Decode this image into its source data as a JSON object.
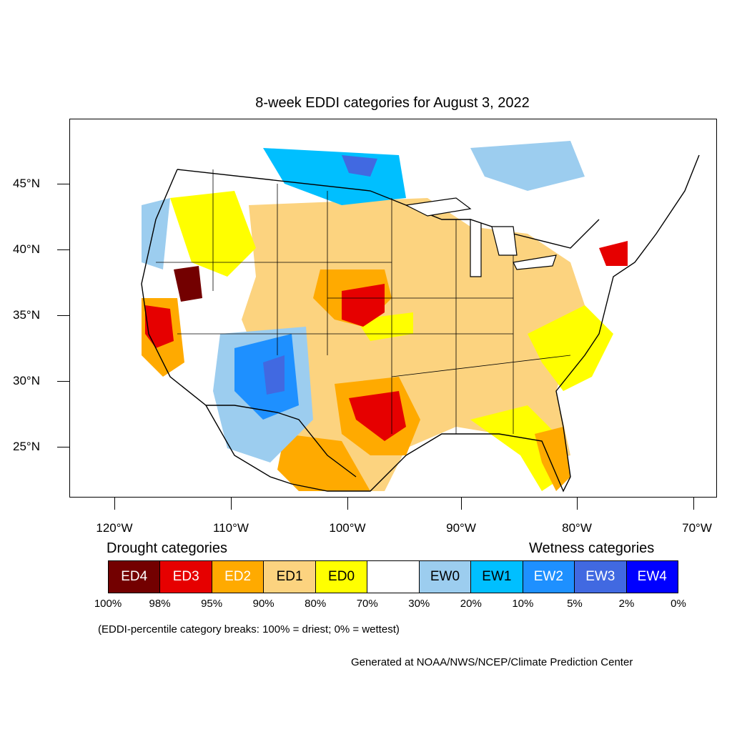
{
  "title": "8-week EDDI categories for August 3, 2022",
  "lat_labels": [
    "45°N",
    "40°N",
    "35°N",
    "30°N",
    "25°N"
  ],
  "lon_labels": [
    "120°W",
    "110°W",
    "100°W",
    "90°W",
    "80°W",
    "70°W"
  ],
  "legend": {
    "drought_title": "Drought categories",
    "wetness_title": "Wetness categories",
    "categories": [
      {
        "label": "ED4",
        "color": "#730000",
        "text_color": "#ffffff"
      },
      {
        "label": "ED3",
        "color": "#e60000",
        "text_color": "#ffffff"
      },
      {
        "label": "ED2",
        "color": "#ffaa00",
        "text_color": "#ffffff"
      },
      {
        "label": "ED1",
        "color": "#fcd37f",
        "text_color": "#000000"
      },
      {
        "label": "ED0",
        "color": "#ffff00",
        "text_color": "#000000"
      },
      {
        "label": "",
        "color": "#ffffff",
        "text_color": "#000000"
      },
      {
        "label": "EW0",
        "color": "#9ccdef",
        "text_color": "#000000"
      },
      {
        "label": "EW1",
        "color": "#00bfff",
        "text_color": "#000000"
      },
      {
        "label": "EW2",
        "color": "#1e90ff",
        "text_color": "#ffffff"
      },
      {
        "label": "EW3",
        "color": "#4169e1",
        "text_color": "#ffffff"
      },
      {
        "label": "EW4",
        "color": "#0000ff",
        "text_color": "#ffffff"
      }
    ],
    "percentiles": [
      "100%",
      "98%",
      "95%",
      "90%",
      "80%",
      "70%",
      "30%",
      "20%",
      "10%",
      "5%",
      "2%",
      "0%"
    ]
  },
  "note": "(EDDI-percentile category breaks: 100% = driest; 0% = wettest)",
  "credit": "Generated at NOAA/NWS/NCEP/Climate Prediction Center"
}
